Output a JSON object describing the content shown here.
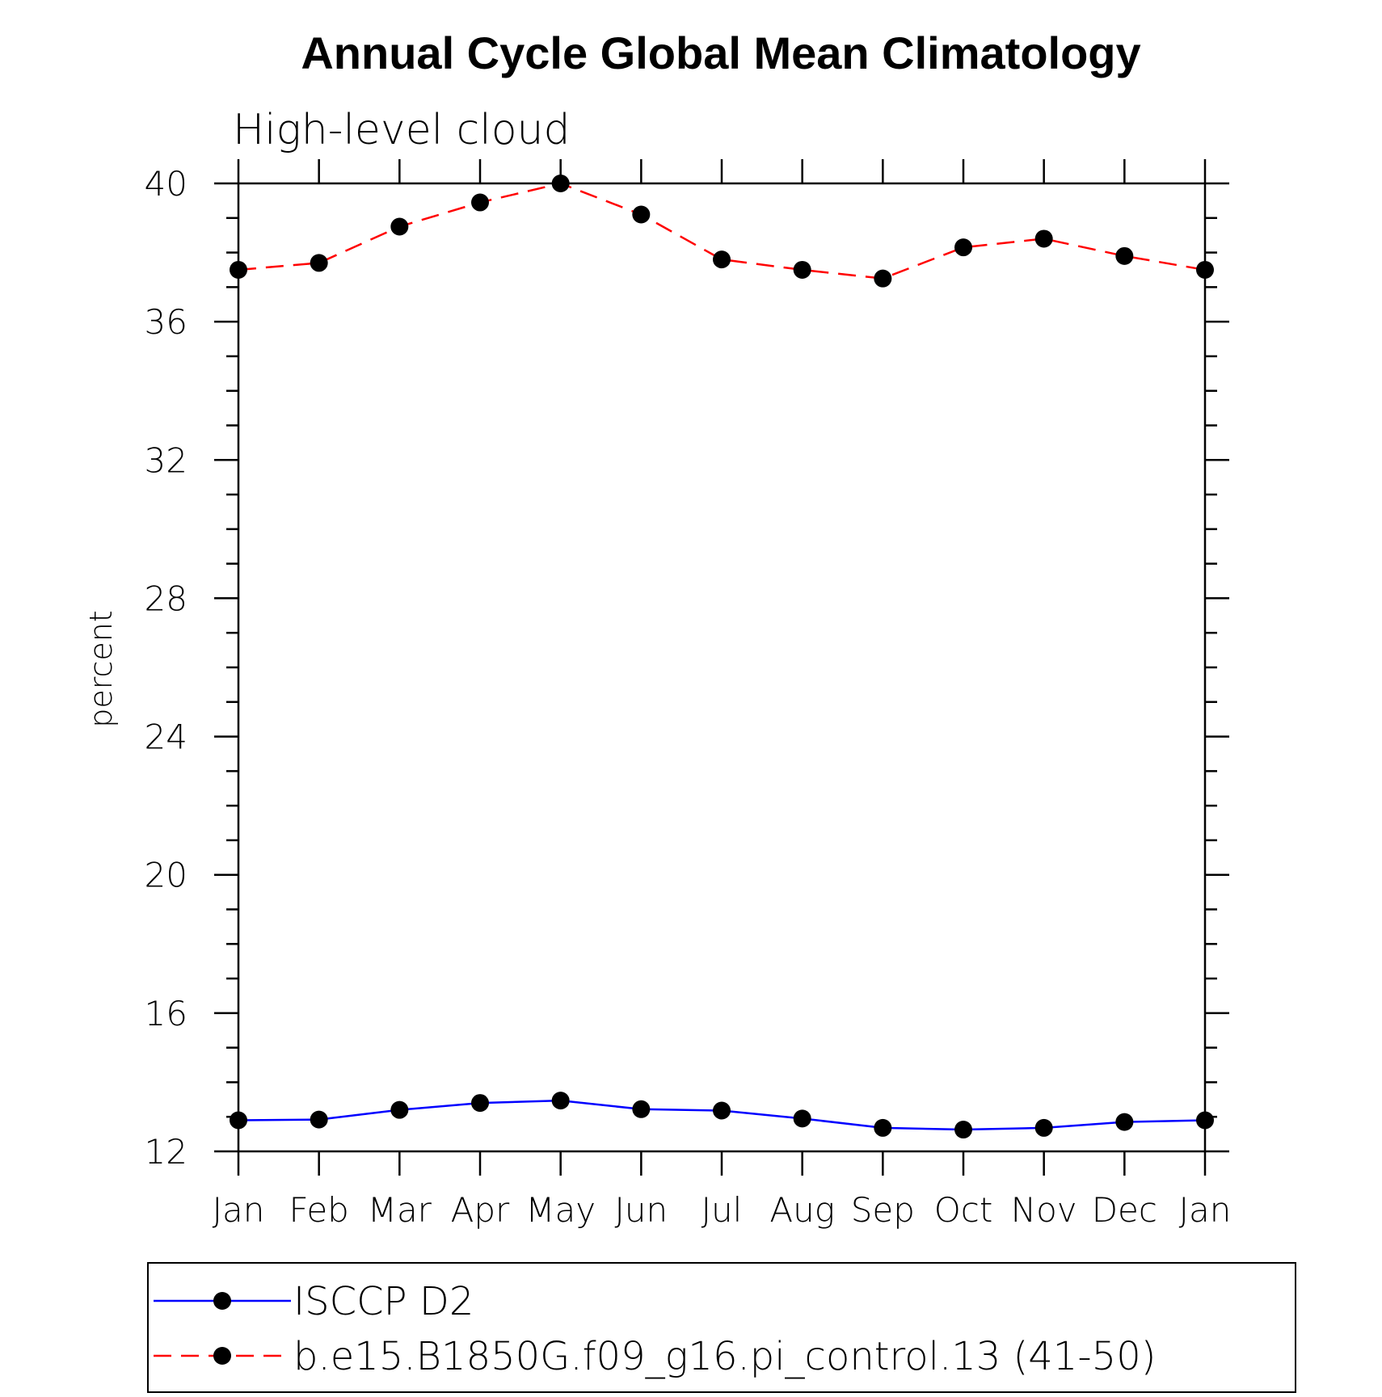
{
  "chart_data": {
    "type": "line",
    "title": "Annual Cycle Global Mean Climatology",
    "subtitle": "High-level cloud",
    "xlabel": "",
    "ylabel": "percent",
    "categories": [
      "Jan",
      "Feb",
      "Mar",
      "Apr",
      "May",
      "Jun",
      "Jul",
      "Aug",
      "Sep",
      "Oct",
      "Nov",
      "Dec",
      "Jan"
    ],
    "ylim": [
      12,
      40
    ],
    "yticks": [
      "12",
      "16",
      "20",
      "24",
      "28",
      "32",
      "36",
      "40"
    ],
    "grid": false,
    "legend_position": "bottom",
    "series": [
      {
        "name": "ISCCP D2",
        "color": "#0000ff",
        "line_style": "solid",
        "marker": "filled-circle",
        "values": [
          12.9,
          12.92,
          13.2,
          13.4,
          13.47,
          13.22,
          13.18,
          12.95,
          12.68,
          12.63,
          12.68,
          12.85,
          12.9
        ]
      },
      {
        "name": "b.e15.B1850G.f09_g16.pi_control.13 (41-50)",
        "color": "#ff0000",
        "line_style": "dashed",
        "marker": "filled-circle",
        "values": [
          37.5,
          37.7,
          38.75,
          39.45,
          40.0,
          39.1,
          37.8,
          37.5,
          37.25,
          38.15,
          38.4,
          37.9,
          37.5
        ]
      }
    ]
  }
}
